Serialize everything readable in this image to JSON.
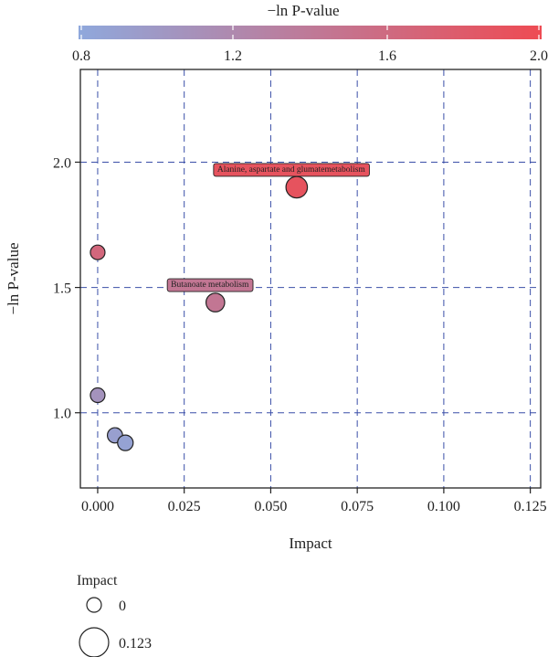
{
  "chart_data": {
    "type": "scatter",
    "title": "",
    "xlabel": "Impact",
    "ylabel": "−ln P-value",
    "xlim": [
      -0.005,
      0.128
    ],
    "ylim": [
      0.7,
      2.37
    ],
    "x_ticks": [
      0.0,
      0.025,
      0.05,
      0.075,
      0.1,
      0.125
    ],
    "x_tick_labels": [
      "0.000",
      "0.025",
      "0.050",
      "0.075",
      "0.100",
      "0.125"
    ],
    "y_ticks": [
      1.0,
      1.5,
      2.0
    ],
    "y_tick_labels": [
      "1.0",
      "1.5",
      "2.0"
    ],
    "grid": true,
    "colorbar": {
      "title": "−ln P-value",
      "range": [
        0.8,
        2.0
      ],
      "low_color": "#8fa8dc",
      "high_color": "#ee4b53",
      "ticks": [
        0.8,
        1.2,
        1.6,
        2.0
      ],
      "tick_labels": [
        "0.8",
        "1.2",
        "1.6",
        "2.0"
      ],
      "position": "top"
    },
    "size_legend": {
      "title": "Impact",
      "items": [
        {
          "label": "0",
          "value": 0
        },
        {
          "label": "0.123",
          "value": 0.123
        }
      ],
      "position": "bottom-left"
    },
    "points": [
      {
        "x": 0.0,
        "y": 1.64,
        "label": ""
      },
      {
        "x": 0.0,
        "y": 1.07,
        "label": ""
      },
      {
        "x": 0.005,
        "y": 0.91,
        "label": ""
      },
      {
        "x": 0.008,
        "y": 0.88,
        "label": ""
      },
      {
        "x": 0.034,
        "y": 1.44,
        "label": "Butanoate metabolism"
      },
      {
        "x": 0.0575,
        "y": 1.9,
        "label": "Alanine, aspartate and glumatemetabolism"
      }
    ],
    "colors": {
      "grid": "#3a4fa8",
      "point_stroke": "#222222",
      "label_box": "#ee4b53"
    }
  }
}
